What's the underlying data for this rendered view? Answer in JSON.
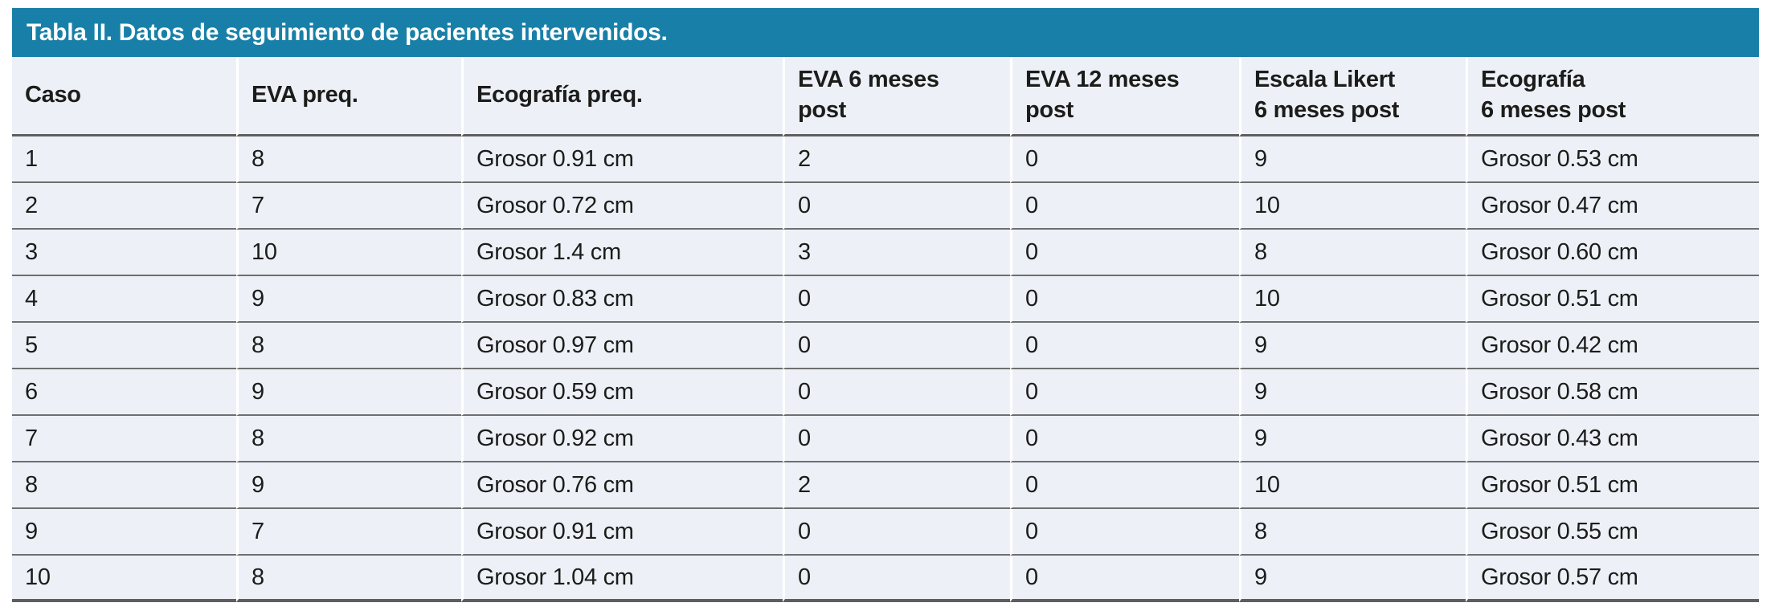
{
  "table": {
    "title": "Tabla II. Datos de seguimiento de pacientes intervenidos.",
    "columns": [
      "Caso",
      "EVA preq.",
      "Ecografía preq.",
      "EVA 6 meses\npost",
      "EVA 12 meses\npost",
      "Escala Likert\n6 meses post",
      "Ecografía\n6 meses post"
    ],
    "rows": [
      [
        "1",
        "8",
        "Grosor 0.91 cm",
        "2",
        "0",
        "9",
        "Grosor 0.53 cm"
      ],
      [
        "2",
        "7",
        "Grosor 0.72 cm",
        "0",
        "0",
        "10",
        "Grosor 0.47 cm"
      ],
      [
        "3",
        "10",
        "Grosor 1.4 cm",
        "3",
        "0",
        "8",
        "Grosor 0.60 cm"
      ],
      [
        "4",
        "9",
        "Grosor 0.83 cm",
        "0",
        "0",
        "10",
        "Grosor 0.51 cm"
      ],
      [
        "5",
        "8",
        "Grosor 0.97 cm",
        "0",
        "0",
        "9",
        "Grosor 0.42 cm"
      ],
      [
        "6",
        "9",
        "Grosor 0.59 cm",
        "0",
        "0",
        "9",
        "Grosor 0.58 cm"
      ],
      [
        "7",
        "8",
        "Grosor 0.92 cm",
        "0",
        "0",
        "9",
        "Grosor 0.43 cm"
      ],
      [
        "8",
        "9",
        "Grosor 0.76 cm",
        "2",
        "0",
        "10",
        "Grosor 0.51 cm"
      ],
      [
        "9",
        "7",
        "Grosor 0.91 cm",
        "0",
        "0",
        "8",
        "Grosor 0.55 cm"
      ],
      [
        "10",
        "8",
        "Grosor 1.04 cm",
        "0",
        "0",
        "9",
        "Grosor 0.57 cm"
      ]
    ]
  },
  "colors": {
    "title_bar_bg": "#1880A8",
    "title_text": "#FFFFFF",
    "row_bg": "#EDF1F7",
    "text": "#1C1C1A",
    "row_border": "#6F6F6F",
    "strong_border": "#5E5E5E"
  }
}
